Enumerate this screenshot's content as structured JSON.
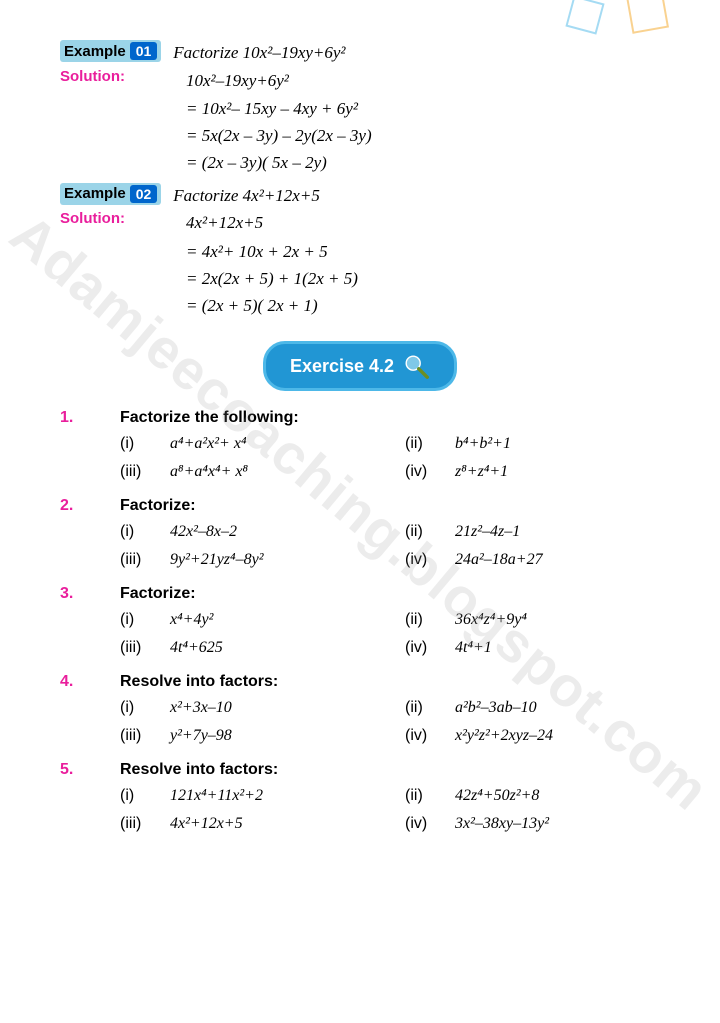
{
  "examples": [
    {
      "label": "Example",
      "num": "01",
      "prompt": "Factorize 10x²–19xy+6y²",
      "solution_label": "Solution:",
      "lines": [
        "10x²–19xy+6y²",
        "=  10x²– 15xy – 4xy + 6y²",
        "=  5x(2x – 3y) – 2y(2x – 3y)",
        "=  (2x – 3y)( 5x – 2y)"
      ]
    },
    {
      "label": "Example",
      "num": "02",
      "prompt": "Factorize 4x²+12x+5",
      "solution_label": "Solution:",
      "lines": [
        "4x²+12x+5",
        "=  4x²+ 10x + 2x + 5",
        "=  2x(2x + 5) + 1(2x + 5)",
        "=  (2x + 5)( 2x + 1)"
      ]
    }
  ],
  "exercise_title": "Exercise 4.2",
  "questions": [
    {
      "num": "1.",
      "title": "Factorize the following:",
      "items": [
        {
          "r": "(i)",
          "e": "a⁴+a²x²+ x⁴"
        },
        {
          "r": "(ii)",
          "e": "b⁴+b²+1"
        },
        {
          "r": "(iii)",
          "e": "a⁸+a⁴x⁴+ x⁸"
        },
        {
          "r": "(iv)",
          "e": "z⁸+z⁴+1"
        }
      ]
    },
    {
      "num": "2.",
      "title": "Factorize:",
      "items": [
        {
          "r": "(i)",
          "e": "42x²–8x–2"
        },
        {
          "r": "(ii)",
          "e": "21z²–4z–1"
        },
        {
          "r": "(iii)",
          "e": "9y²+21yz⁴–8y²"
        },
        {
          "r": "(iv)",
          "e": "24a²–18a+27"
        }
      ]
    },
    {
      "num": "3.",
      "title": "Factorize:",
      "items": [
        {
          "r": "(i)",
          "e": "x⁴+4y²"
        },
        {
          "r": "(ii)",
          "e": "36x⁴z⁴+9y⁴"
        },
        {
          "r": "(iii)",
          "e": "4t⁴+625"
        },
        {
          "r": "(iv)",
          "e": "4t⁴+1"
        }
      ]
    },
    {
      "num": "4.",
      "title": "Resolve into factors:",
      "items": [
        {
          "r": "(i)",
          "e": "x²+3x–10"
        },
        {
          "r": "(ii)",
          "e": "a²b²–3ab–10"
        },
        {
          "r": "(iii)",
          "e": "y²+7y–98"
        },
        {
          "r": "(iv)",
          "e": "x²y²z²+2xyz–24"
        }
      ]
    },
    {
      "num": "5.",
      "title": "Resolve into factors:",
      "items": [
        {
          "r": "(i)",
          "e": "121x⁴+11x²+2"
        },
        {
          "r": "(ii)",
          "e": "42z⁴+50z²+8"
        },
        {
          "r": "(iii)",
          "e": "4x²+12x+5"
        },
        {
          "r": "(iv)",
          "e": "3x²–38xy–13y²"
        }
      ]
    }
  ],
  "watermark": "Adamjeecoaching.blogspot.com",
  "colors": {
    "pink": "#e91e9c",
    "badge_bg": "#9bd4e8",
    "num_bg": "#0066cc",
    "exercise_bg": "#2196d4",
    "exercise_border": "#4db8e8"
  }
}
